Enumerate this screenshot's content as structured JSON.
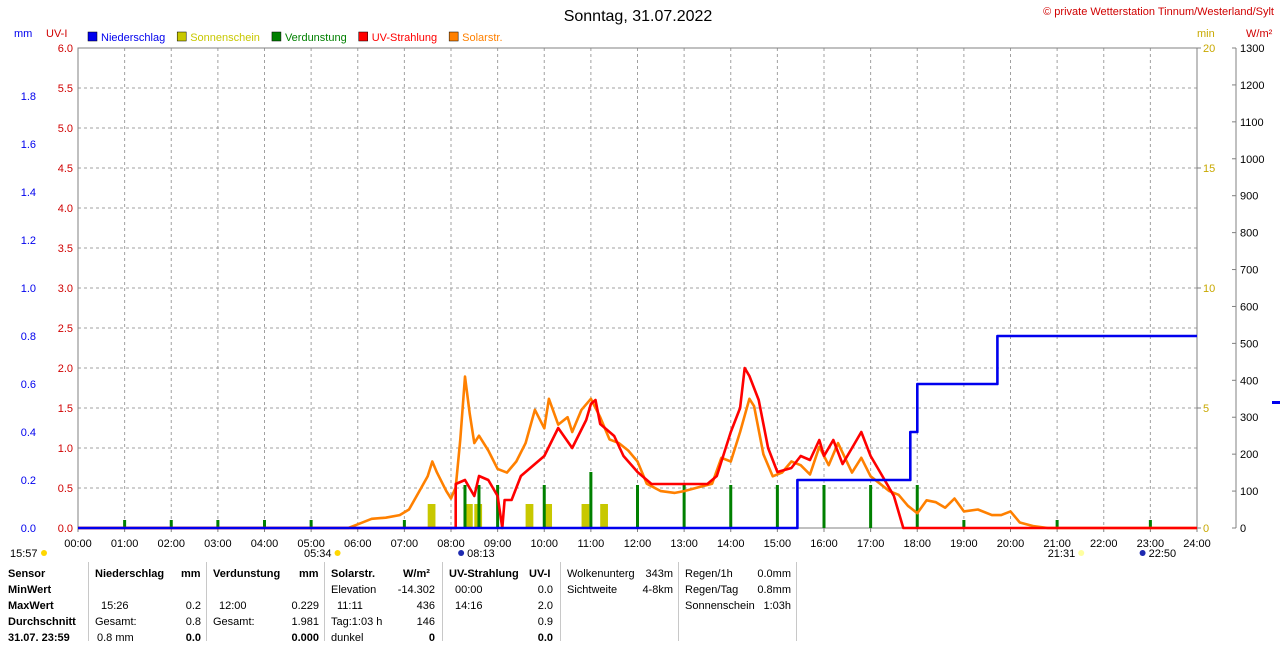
{
  "title": "Sonntag, 31.07.2022",
  "copyright": "© private Wetterstation Tinnum/Westerland/Sylt",
  "unit_labels": {
    "left_outer": "mm",
    "left_inner": "UV-I",
    "right_inner": "min",
    "right_outer": "W/m²"
  },
  "legend": [
    {
      "label": "Niederschlag",
      "color": "#0000ee"
    },
    {
      "label": "Sonnenschein",
      "color": "#c8c800"
    },
    {
      "label": "Verdunstung",
      "color": "#008000"
    },
    {
      "label": "UV-Strahlung",
      "color": "#ff0000"
    },
    {
      "label": "Solarstr.",
      "color": "#ff8000"
    }
  ],
  "markers": {
    "moonrise_prev": "15:57",
    "sunrise": "05:34",
    "moon_rise": "08:13",
    "sunset": "21:31",
    "moon_set": "22:50"
  },
  "chart_data": {
    "type": "line",
    "x_ticks": [
      "00:00",
      "01:00",
      "02:00",
      "03:00",
      "04:00",
      "05:00",
      "06:00",
      "07:00",
      "08:00",
      "09:00",
      "10:00",
      "11:00",
      "12:00",
      "13:00",
      "14:00",
      "15:00",
      "16:00",
      "17:00",
      "18:00",
      "19:00",
      "20:00",
      "21:00",
      "22:00",
      "23:00",
      "24:00"
    ],
    "xlim_hours": [
      0,
      24
    ],
    "axes": {
      "mm": {
        "ylim": [
          0,
          2.0
        ],
        "ticks": [
          "0.0",
          "0.2",
          "0.4",
          "0.6",
          "0.8",
          "1.0",
          "1.2",
          "1.4",
          "1.6",
          "1.8"
        ]
      },
      "uv": {
        "ylim": [
          0,
          6.0
        ],
        "ticks": [
          "0.0",
          "0.5",
          "1.0",
          "1.5",
          "2.0",
          "2.5",
          "3.0",
          "3.5",
          "4.0",
          "4.5",
          "5.0",
          "5.5",
          "6.0"
        ]
      },
      "min": {
        "ylim": [
          0,
          20
        ],
        "ticks": [
          "0",
          "5",
          "10",
          "15",
          "20"
        ]
      },
      "wm2": {
        "ylim": [
          0,
          1300
        ],
        "ticks": [
          "0",
          "100",
          "200",
          "300",
          "400",
          "500",
          "600",
          "700",
          "800",
          "900",
          "1000",
          "1100",
          "1200",
          "1300"
        ]
      }
    },
    "grid": true,
    "series": [
      {
        "name": "Niederschlag",
        "axis": "mm",
        "color": "#0000ee",
        "step": true,
        "points": [
          [
            0,
            0
          ],
          [
            15.43,
            0
          ],
          [
            15.43,
            0.2
          ],
          [
            17.85,
            0.2
          ],
          [
            17.85,
            0.4
          ],
          [
            18.0,
            0.4
          ],
          [
            18.0,
            0.6
          ],
          [
            19.72,
            0.6
          ],
          [
            19.72,
            0.8
          ],
          [
            24,
            0.8
          ]
        ]
      },
      {
        "name": "UV-Strahlung",
        "axis": "uv",
        "color": "#ff0000",
        "points": [
          [
            0,
            0
          ],
          [
            8.1,
            0
          ],
          [
            8.1,
            0.55
          ],
          [
            8.3,
            0.6
          ],
          [
            8.5,
            0.4
          ],
          [
            8.6,
            0.65
          ],
          [
            8.8,
            0.6
          ],
          [
            9.0,
            0.4
          ],
          [
            9.1,
            0.0
          ],
          [
            9.15,
            0.35
          ],
          [
            9.3,
            0.35
          ],
          [
            9.5,
            0.65
          ],
          [
            10.0,
            0.9
          ],
          [
            10.3,
            1.25
          ],
          [
            10.6,
            1.0
          ],
          [
            10.9,
            1.35
          ],
          [
            11.0,
            1.55
          ],
          [
            11.1,
            1.6
          ],
          [
            11.2,
            1.3
          ],
          [
            11.5,
            1.15
          ],
          [
            11.7,
            0.9
          ],
          [
            12.0,
            0.7
          ],
          [
            12.3,
            0.55
          ],
          [
            12.7,
            0.55
          ],
          [
            13.0,
            0.55
          ],
          [
            13.5,
            0.55
          ],
          [
            13.7,
            0.65
          ],
          [
            14.0,
            1.2
          ],
          [
            14.2,
            1.5
          ],
          [
            14.3,
            2.0
          ],
          [
            14.4,
            1.9
          ],
          [
            14.6,
            1.6
          ],
          [
            14.8,
            1.0
          ],
          [
            15.0,
            0.7
          ],
          [
            15.3,
            0.75
          ],
          [
            15.5,
            0.9
          ],
          [
            15.7,
            0.85
          ],
          [
            15.9,
            1.1
          ],
          [
            16.0,
            0.9
          ],
          [
            16.2,
            1.1
          ],
          [
            16.4,
            0.8
          ],
          [
            16.6,
            1.0
          ],
          [
            16.8,
            1.2
          ],
          [
            17.0,
            0.9
          ],
          [
            17.2,
            0.7
          ],
          [
            17.5,
            0.4
          ],
          [
            17.7,
            0.0
          ],
          [
            24,
            0
          ]
        ]
      },
      {
        "name": "Solarstr.",
        "axis": "wm2",
        "color": "#ff8000",
        "points": [
          [
            0,
            0
          ],
          [
            5.8,
            0
          ],
          [
            6.0,
            10
          ],
          [
            6.3,
            25
          ],
          [
            6.6,
            28
          ],
          [
            6.9,
            35
          ],
          [
            7.1,
            50
          ],
          [
            7.3,
            95
          ],
          [
            7.5,
            140
          ],
          [
            7.6,
            180
          ],
          [
            7.7,
            150
          ],
          [
            7.9,
            100
          ],
          [
            8.0,
            80
          ],
          [
            8.1,
            110
          ],
          [
            8.2,
            240
          ],
          [
            8.3,
            410
          ],
          [
            8.4,
            310
          ],
          [
            8.5,
            230
          ],
          [
            8.6,
            250
          ],
          [
            8.8,
            210
          ],
          [
            9.0,
            160
          ],
          [
            9.2,
            150
          ],
          [
            9.4,
            180
          ],
          [
            9.6,
            230
          ],
          [
            9.8,
            320
          ],
          [
            10.0,
            270
          ],
          [
            10.1,
            350
          ],
          [
            10.3,
            280
          ],
          [
            10.5,
            300
          ],
          [
            10.6,
            260
          ],
          [
            10.8,
            320
          ],
          [
            11.0,
            350
          ],
          [
            11.2,
            300
          ],
          [
            11.4,
            240
          ],
          [
            11.6,
            230
          ],
          [
            11.8,
            210
          ],
          [
            12.0,
            180
          ],
          [
            12.2,
            120
          ],
          [
            12.5,
            100
          ],
          [
            12.8,
            95
          ],
          [
            13.0,
            100
          ],
          [
            13.3,
            110
          ],
          [
            13.6,
            120
          ],
          [
            13.8,
            190
          ],
          [
            14.0,
            180
          ],
          [
            14.2,
            260
          ],
          [
            14.4,
            350
          ],
          [
            14.5,
            330
          ],
          [
            14.7,
            200
          ],
          [
            14.9,
            140
          ],
          [
            15.1,
            150
          ],
          [
            15.3,
            180
          ],
          [
            15.5,
            170
          ],
          [
            15.7,
            145
          ],
          [
            15.9,
            220
          ],
          [
            16.1,
            170
          ],
          [
            16.3,
            230
          ],
          [
            16.6,
            150
          ],
          [
            16.8,
            190
          ],
          [
            17.0,
            140
          ],
          [
            17.2,
            120
          ],
          [
            17.4,
            100
          ],
          [
            17.6,
            90
          ],
          [
            17.8,
            60
          ],
          [
            18.0,
            40
          ],
          [
            18.2,
            75
          ],
          [
            18.4,
            70
          ],
          [
            18.6,
            55
          ],
          [
            18.8,
            80
          ],
          [
            19.0,
            45
          ],
          [
            19.3,
            50
          ],
          [
            19.6,
            35
          ],
          [
            19.8,
            35
          ],
          [
            20.0,
            45
          ],
          [
            20.2,
            15
          ],
          [
            20.5,
            5
          ],
          [
            20.8,
            0
          ],
          [
            24,
            0
          ]
        ]
      }
    ],
    "sunshine_minutes": [
      [
        7.5,
        1
      ],
      [
        8.3,
        1
      ],
      [
        8.5,
        1
      ],
      [
        9.6,
        1
      ],
      [
        10.0,
        1
      ],
      [
        10.8,
        1
      ],
      [
        11.2,
        1
      ]
    ],
    "evaporation_bars_hours": [
      1,
      2,
      3,
      4,
      5,
      7,
      8.3,
      8.6,
      9.0,
      10.0,
      11.0,
      12.0,
      13.0,
      14.0,
      15.0,
      16.0,
      17.0,
      18.0,
      19.0,
      21.0,
      23.0
    ]
  },
  "stats": {
    "sensor_col": [
      "Sensor",
      "MinWert",
      "MaxWert",
      "Durchschnitt",
      "31.07. 23:59"
    ],
    "niederschlag": {
      "header": "Niederschlag",
      "unit": "mm",
      "max_time": "15:26",
      "max_val": "0.2",
      "gesamt_label": "Gesamt:",
      "gesamt_val": "0.8",
      "last_a": "0.8 mm",
      "last_b": "0.0"
    },
    "verdunstung": {
      "header": "Verdunstung",
      "unit": "mm",
      "max_time": "12:00",
      "max_val": "0.229",
      "gesamt_label": "Gesamt:",
      "gesamt_val": "1.981",
      "last_b": "0.000"
    },
    "solar": {
      "header": "Solarstr.",
      "unit": "W/m²",
      "elev_label": "Elevation",
      "elev_val": "-14.302",
      "max_time": "11:11",
      "max_val": "436",
      "tag_label": "Tag:1:03 h",
      "tag_val": "146",
      "dunkel_label": "dunkel",
      "dunkel_val": "0"
    },
    "uv": {
      "header": "UV-Strahlung",
      "unit": "UV-I",
      "min_time": "00:00",
      "min_val": "0.0",
      "max_time": "14:16",
      "max_val": "2.0",
      "avg_val": "0.9",
      "last_val": "0.0"
    },
    "wolken": {
      "label1": "Wolkenunterg",
      "val1": "343m",
      "label2": "Sichtweite",
      "val2": "4-8km"
    },
    "regen": {
      "label1": "Regen/1h",
      "val1": "0.0mm",
      "label2": "Regen/Tag",
      "val2": "0.8mm",
      "label3": "Sonnenschein",
      "val3": "1:03h"
    }
  }
}
